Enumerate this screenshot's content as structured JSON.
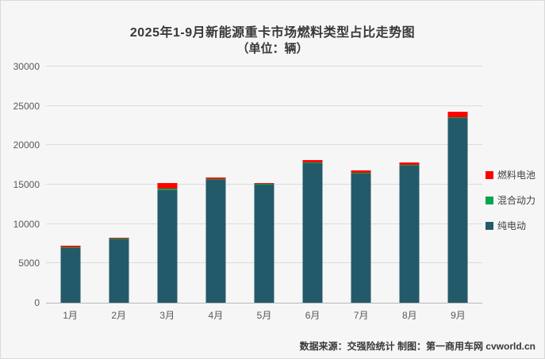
{
  "chart_data": {
    "type": "bar",
    "stacked": true,
    "title": "2025年1-9月新能源重卡市场燃料类型占比走势图",
    "subtitle": "（单位：辆）",
    "categories": [
      "1月",
      "2月",
      "3月",
      "4月",
      "5月",
      "6月",
      "7月",
      "8月",
      "9月"
    ],
    "series": [
      {
        "name": "纯电动",
        "color": "#235a69",
        "values": [
          6900,
          8050,
          14300,
          15600,
          15000,
          17700,
          16450,
          17400,
          23500
        ]
      },
      {
        "name": "混合动力",
        "color": "#00a650",
        "values": [
          50,
          100,
          150,
          150,
          50,
          100,
          50,
          150,
          100
        ]
      },
      {
        "name": "燃料电池",
        "color": "#ff0000",
        "values": [
          200,
          150,
          750,
          200,
          150,
          300,
          300,
          300,
          650
        ]
      }
    ],
    "totals": [
      7150,
      8300,
      15200,
      15950,
      15200,
      18100,
      16800,
      17850,
      24250
    ],
    "ylim": [
      0,
      30000
    ],
    "yticks": [
      0,
      5000,
      10000,
      15000,
      20000,
      25000,
      30000
    ],
    "grid": true,
    "legend_position": "right",
    "legend": [
      {
        "label": "燃料电池",
        "color": "#ff0000",
        "key": "fuel-cell"
      },
      {
        "label": "混合动力",
        "color": "#00a650",
        "key": "hybrid"
      },
      {
        "label": "纯电动",
        "color": "#235a69",
        "key": "pure-electric"
      }
    ]
  },
  "footer": {
    "credit": "数据来源：交强险统计  制图：第一商用车网 cvworld.cn"
  }
}
